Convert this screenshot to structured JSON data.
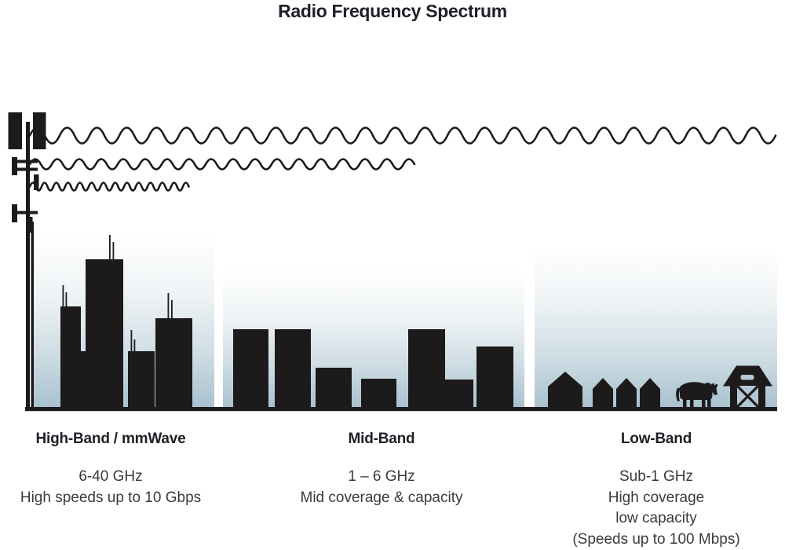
{
  "title": "Radio Frequency Spectrum",
  "bands": [
    {
      "id": "high-band",
      "heading": "High-Band / mmWave",
      "lines": [
        "6-40 GHz",
        "High speeds up to 10 Gbps"
      ]
    },
    {
      "id": "mid-band",
      "heading": "Mid-Band",
      "lines": [
        "1 – 6 GHz",
        "Mid coverage & capacity"
      ]
    },
    {
      "id": "low-band",
      "heading": "Low-Band",
      "lines": [
        "Sub-1 GHz",
        "High coverage",
        "low capacity",
        "(Speeds up to 100 Mbps)"
      ]
    }
  ],
  "icons": {
    "tower": "cell-tower-icon",
    "wave_long": "long-wavelength-wave-icon",
    "wave_mid": "mid-wavelength-wave-icon",
    "wave_short": "short-wavelength-wave-icon",
    "city": "city-skyline-icon",
    "midrise": "midrise-buildings-icon",
    "houses": "houses-icon",
    "cow": "cow-icon",
    "barn": "barn-icon"
  },
  "colors": {
    "silhouette": "#1d1a1b",
    "panel_bottom": "#a8c1cf",
    "heading_text": "#1d2026",
    "body_text": "#3a3a3a"
  }
}
